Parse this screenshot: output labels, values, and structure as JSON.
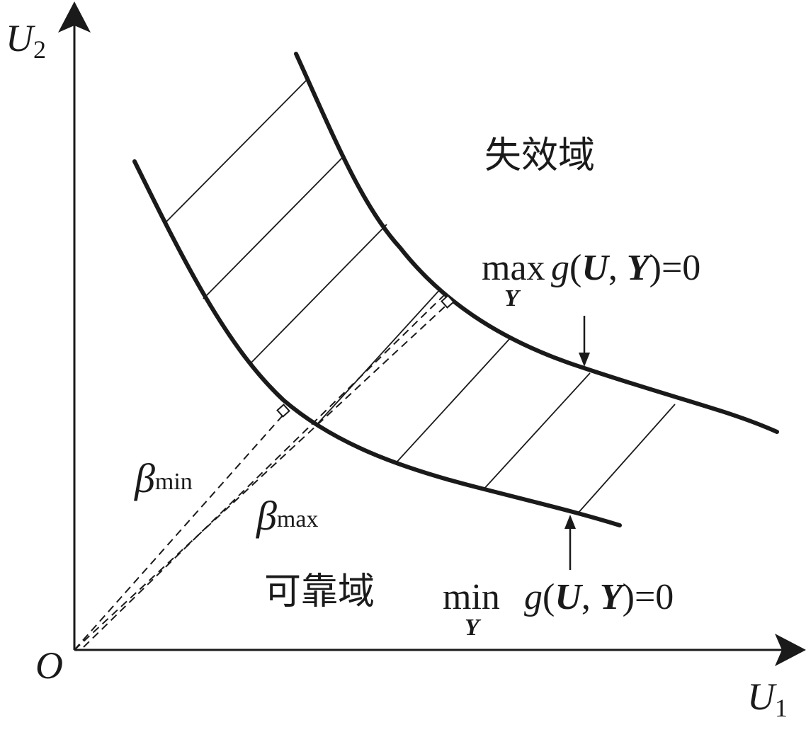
{
  "axes": {
    "y_label_main": "U",
    "y_label_sub": "2",
    "x_label_main": "U",
    "x_label_sub": "1",
    "origin": "O"
  },
  "regions": {
    "failure": "失效域",
    "safe": "可靠域"
  },
  "beta": {
    "symbol": "β",
    "min_sub": "min",
    "max_sub": "max"
  },
  "boundaries": {
    "upper": {
      "op": "max",
      "op_sub": "Y",
      "g": "g",
      "open": "(",
      "U": "U",
      "comma": ", ",
      "Y": "Y",
      "close": ")=0"
    },
    "lower": {
      "op": "min",
      "op_sub": "Y",
      "g": "g",
      "open": "(",
      "U": "U",
      "comma": ", ",
      "Y": "Y",
      "close": ")=0"
    }
  },
  "colors": {
    "ink": "#1a1a1a",
    "background": "#ffffff"
  }
}
